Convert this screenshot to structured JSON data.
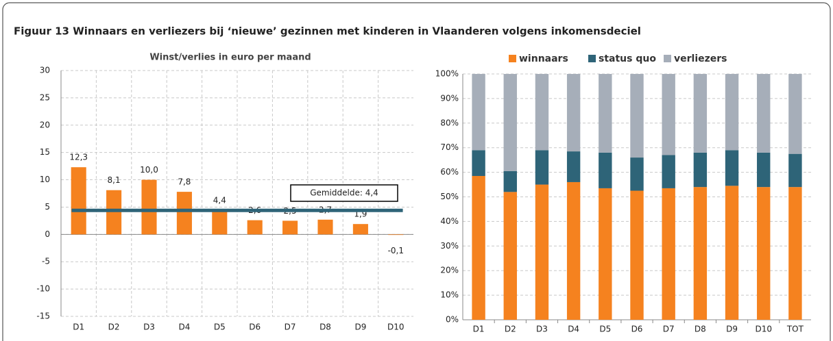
{
  "figure": {
    "title": "Figuur 13    Winnaars en verliezers bij ‘nieuwe’ gezinnen met kinderen in Vlaanderen volgens inkomensdeciel"
  },
  "chart_data": [
    {
      "type": "bar",
      "title": "Winst/verlies in euro per maand",
      "categories": [
        "D1",
        "D2",
        "D3",
        "D4",
        "D5",
        "D6",
        "D7",
        "D8",
        "D9",
        "D10"
      ],
      "values": [
        12.3,
        8.1,
        10.0,
        7.8,
        4.4,
        2.6,
        2.5,
        2.7,
        1.9,
        -0.1
      ],
      "value_labels": [
        "12,3",
        "8,1",
        "10,0",
        "7,8",
        "4,4",
        "2,6",
        "2,5",
        "2,7",
        "1,9",
        "-0,1"
      ],
      "color": "#f5821f",
      "ylim": [
        -15,
        30
      ],
      "yticks": [
        -15,
        -10,
        -5,
        0,
        5,
        10,
        15,
        20,
        25,
        30
      ],
      "grid": true,
      "average": {
        "value": 4.4,
        "label": "Gemiddelde: 4,4",
        "color": "#2e6478"
      }
    },
    {
      "type": "stacked_bar",
      "categories": [
        "D1",
        "D2",
        "D3",
        "D4",
        "D5",
        "D6",
        "D7",
        "D8",
        "D9",
        "D10",
        "TOT"
      ],
      "series": [
        {
          "name": "winnaars",
          "color": "#f5821f",
          "values": [
            58.5,
            52,
            55,
            56,
            53.5,
            52.5,
            53.5,
            54,
            54.5,
            54,
            54
          ]
        },
        {
          "name": "status quo",
          "color": "#2e6478",
          "values": [
            10.5,
            8.5,
            14,
            12.5,
            14.5,
            13.5,
            13.5,
            14,
            14.5,
            14,
            13.5
          ]
        },
        {
          "name": "verliezers",
          "color": "#a6aeb9",
          "values": [
            31,
            39.5,
            31,
            31.5,
            32,
            34,
            33,
            32,
            31,
            32,
            32.5
          ]
        }
      ],
      "ylim": [
        0,
        100
      ],
      "yticks": [
        {
          "value": 0,
          "label": "0%"
        },
        {
          "value": 10,
          "label": "10%"
        },
        {
          "value": 20,
          "label": "20%"
        },
        {
          "value": 30,
          "label": "30%"
        },
        {
          "value": 40,
          "label": "40%"
        },
        {
          "value": 50,
          "label": "50%"
        },
        {
          "value": 60,
          "label": "60%"
        },
        {
          "value": 70,
          "label": "70%"
        },
        {
          "value": 80,
          "label": "80%"
        },
        {
          "value": 90,
          "label": "90%"
        },
        {
          "value": 100,
          "label": "100%"
        }
      ],
      "grid": true,
      "legend": "top"
    }
  ]
}
